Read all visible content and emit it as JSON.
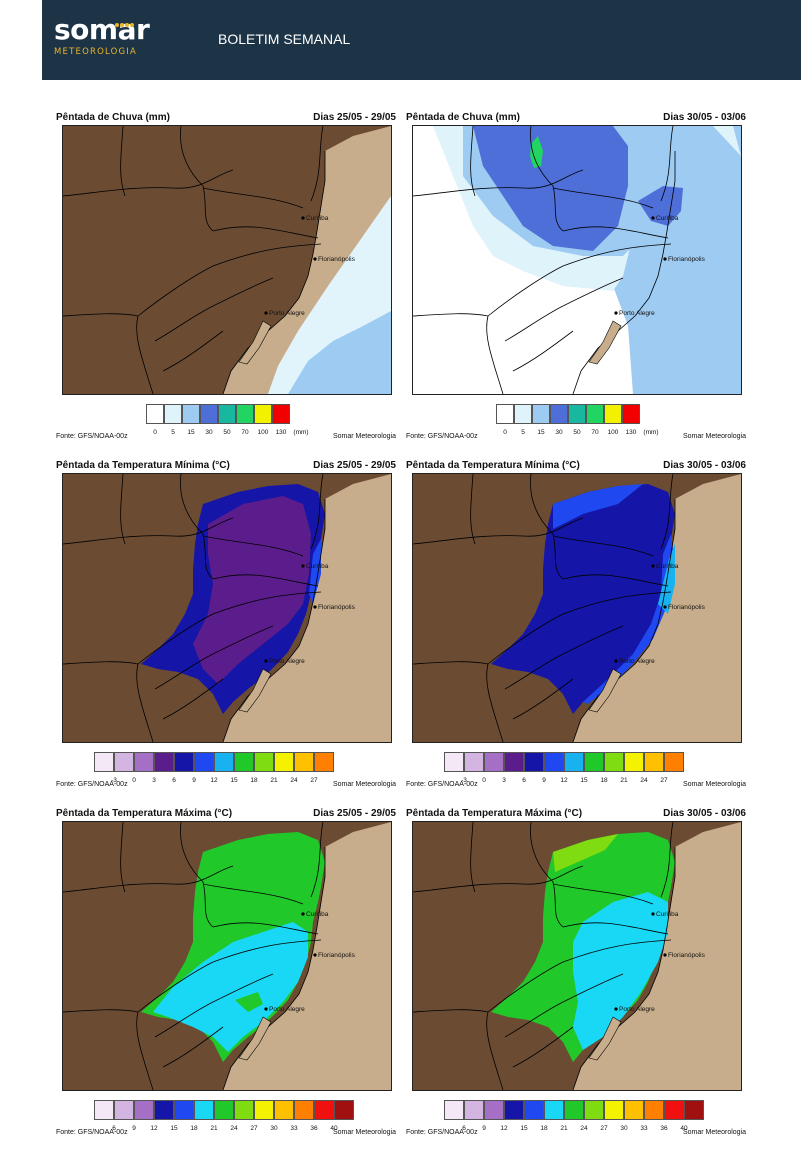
{
  "header": {
    "logo_main": "somar",
    "logo_sub": "METEOROLOGIA",
    "title": "BOLETIM SEMANAL"
  },
  "cities": [
    "Curitiba",
    "Florianópolis",
    "Porto Alegre"
  ],
  "footer": {
    "fonte": "Fonte: GFS/NOAA-00z",
    "credit": "Somar Meteorologia"
  },
  "rows": [
    {
      "title": "Pêntada de Chuva (mm)",
      "legend_ticks": [
        "0",
        "5",
        "15",
        "30",
        "50",
        "70",
        "100",
        "130"
      ],
      "legend_unit": "(mm)",
      "legend_colors": [
        "#ffffff",
        "#dff3fb",
        "#9ecbf2",
        "#4f6fd8",
        "#18b8a0",
        "#22d462",
        "#f2f200",
        "#f20000"
      ],
      "panels": [
        {
          "days": "Dias 25/05 - 29/05"
        },
        {
          "days": "Dias 30/05 - 03/06"
        }
      ]
    },
    {
      "title": "Pêntada da Temperatura Mínima (°C)",
      "legend_ticks": [
        "-3",
        "0",
        "3",
        "6",
        "9",
        "12",
        "15",
        "18",
        "21",
        "24",
        "27"
      ],
      "legend_colors": [
        "#f4e8f6",
        "#d4b4e0",
        "#a56fc6",
        "#5c1d8c",
        "#1515a8",
        "#1f48f0",
        "#18b2f0",
        "#21c829",
        "#7edc10",
        "#f4f200",
        "#ffc000",
        "#ff8000"
      ],
      "panels": [
        {
          "days": "Dias 25/05 - 29/05"
        },
        {
          "days": "Dias 30/05 - 03/06"
        }
      ]
    },
    {
      "title": "Pêntada da Temperatura Máxima (°C)",
      "legend_ticks": [
        "6",
        "9",
        "12",
        "15",
        "18",
        "21",
        "24",
        "27",
        "30",
        "33",
        "36",
        "40"
      ],
      "legend_colors": [
        "#f4e8f6",
        "#d4b4e0",
        "#a56fc6",
        "#1515a8",
        "#1f48f0",
        "#18d8f6",
        "#21c829",
        "#7edc10",
        "#f4f200",
        "#ffc000",
        "#ff8000",
        "#f01010",
        "#a01010"
      ],
      "panels": [
        {
          "days": "Dias 25/05 - 29/05"
        },
        {
          "days": "Dias 30/05 - 03/06"
        }
      ]
    }
  ]
}
